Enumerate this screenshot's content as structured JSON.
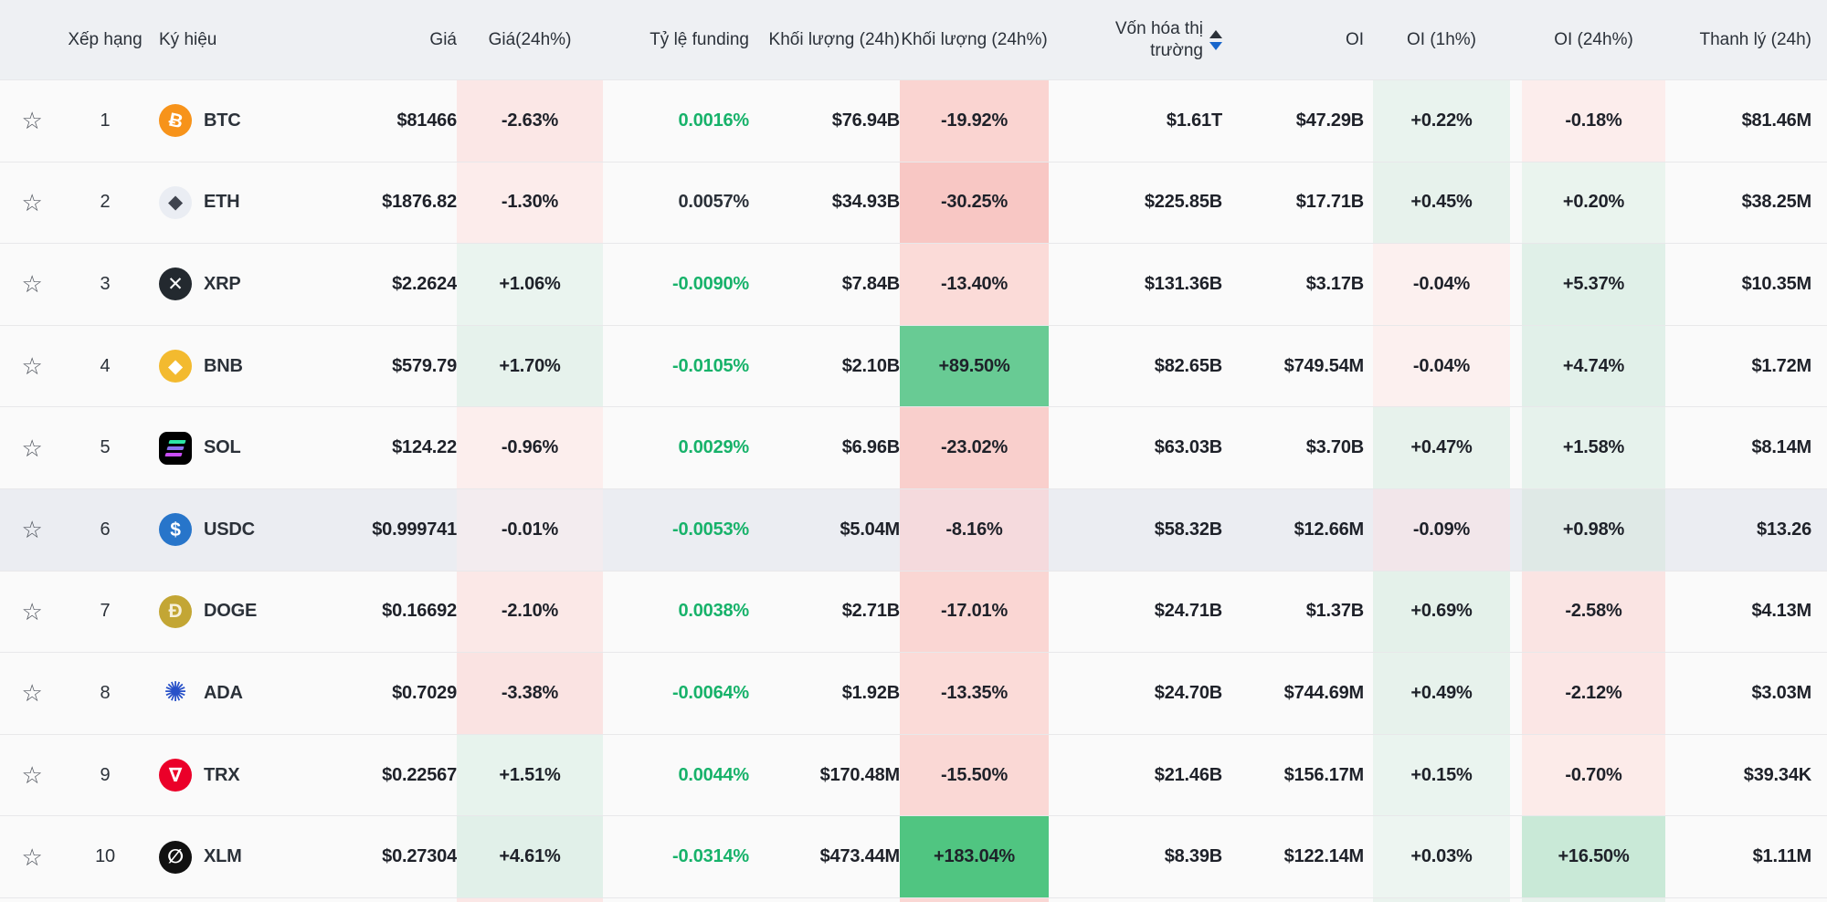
{
  "colors": {
    "header_bg": "#eef0f3",
    "row_bg": "#fafafa",
    "highlight_row_bg": "#ebedf2",
    "row_border": "#e8e8ea",
    "funding_green": "#17b26a",
    "text_dark": "#2b3139",
    "sort_active_blue": "#1866cb"
  },
  "table": {
    "sort": {
      "column": "Vốn hóa thị trường",
      "direction": "desc"
    },
    "columns": [
      {
        "label": "Xếp hạng"
      },
      {
        "label": "Ký hiệu"
      },
      {
        "label": "Giá"
      },
      {
        "label": "Giá(24h%)"
      },
      {
        "label": "Tỷ lệ funding"
      },
      {
        "label": "Khối lượng (24h)"
      },
      {
        "label": "Khối lượng (24h%)"
      },
      {
        "label": "Vốn hóa thị trường"
      },
      {
        "label": "OI"
      },
      {
        "label": "OI (1h%)"
      },
      {
        "label": "OI (24h%)"
      },
      {
        "label": "Thanh lý (24h)"
      }
    ],
    "rows": [
      {
        "rank": "1",
        "symbol": "BTC",
        "icon": {
          "name": "btc-coin-icon",
          "bg": "#f7931a",
          "fg": "#ffffff",
          "glyph": "Ƀ",
          "shape": "circle"
        },
        "price": "$81466",
        "price_chg": "-2.63%",
        "price_chg_bg": "#fbe7e6",
        "funding": "0.0016%",
        "funding_color": "#17b26a",
        "vol": "$76.94B",
        "vol_chg": "-19.92%",
        "vol_chg_bg": "#fad4d1",
        "mcap": "$1.61T",
        "oi": "$47.29B",
        "oi_1h": "+0.22%",
        "oi_1h_bg": "#e9f3ee",
        "oi_24h": "-0.18%",
        "oi_24h_bg": "#fcedec",
        "liq": "$81.46M",
        "highlighted": false
      },
      {
        "rank": "2",
        "symbol": "ETH",
        "icon": {
          "name": "eth-coin-icon",
          "bg": "#eaedf3",
          "fg": "#40444f",
          "glyph": "◆",
          "shape": "circle"
        },
        "price": "$1876.82",
        "price_chg": "-1.30%",
        "price_chg_bg": "#fceceb",
        "funding": "0.0057%",
        "funding_color": "#2b3139",
        "vol": "$34.93B",
        "vol_chg": "-30.25%",
        "vol_chg_bg": "#f8c7c4",
        "mcap": "$225.85B",
        "oi": "$17.71B",
        "oi_1h": "+0.45%",
        "oi_1h_bg": "#e7f2ec",
        "oi_24h": "+0.20%",
        "oi_24h_bg": "#eaf4ee",
        "liq": "$38.25M",
        "highlighted": false
      },
      {
        "rank": "3",
        "symbol": "XRP",
        "icon": {
          "name": "xrp-coin-icon",
          "bg": "#23292f",
          "fg": "#ffffff",
          "glyph": "✕",
          "shape": "circle"
        },
        "price": "$2.2624",
        "price_chg": "+1.06%",
        "price_chg_bg": "#eaf4ef",
        "funding": "-0.0090%",
        "funding_color": "#17b26a",
        "vol": "$7.84B",
        "vol_chg": "-13.40%",
        "vol_chg_bg": "#fbdbd8",
        "mcap": "$131.36B",
        "oi": "$3.17B",
        "oi_1h": "-0.04%",
        "oi_1h_bg": "#fcf0ef",
        "oi_24h": "+5.37%",
        "oi_24h_bg": "#e0f0e8",
        "liq": "$10.35M",
        "highlighted": false
      },
      {
        "rank": "4",
        "symbol": "BNB",
        "icon": {
          "name": "bnb-coin-icon",
          "bg": "#f3ba2f",
          "fg": "#ffffff",
          "glyph": "◆",
          "shape": "circle"
        },
        "price": "$579.79",
        "price_chg": "+1.70%",
        "price_chg_bg": "#e6f2ec",
        "funding": "-0.0105%",
        "funding_color": "#17b26a",
        "vol": "$2.10B",
        "vol_chg": "+89.50%",
        "vol_chg_bg": "#68cb94",
        "mcap": "$82.65B",
        "oi": "$749.54M",
        "oi_1h": "-0.04%",
        "oi_1h_bg": "#fcf0ef",
        "oi_24h": "+4.74%",
        "oi_24h_bg": "#e1f0e9",
        "liq": "$1.72M",
        "highlighted": false
      },
      {
        "rank": "5",
        "symbol": "SOL",
        "icon": {
          "name": "sol-coin-icon",
          "bg": "#000000",
          "shape": "rounded-square",
          "type": "bars",
          "bars": [
            "#2ce5a4",
            "#8a72ee",
            "#c94ef6"
          ]
        },
        "price": "$124.22",
        "price_chg": "-0.96%",
        "price_chg_bg": "#fceeed",
        "funding": "0.0029%",
        "funding_color": "#17b26a",
        "vol": "$6.96B",
        "vol_chg": "-23.02%",
        "vol_chg_bg": "#f9cfcc",
        "mcap": "$63.03B",
        "oi": "$3.70B",
        "oi_1h": "+0.47%",
        "oi_1h_bg": "#e7f2ec",
        "oi_24h": "+1.58%",
        "oi_24h_bg": "#e6f2ec",
        "liq": "$8.14M",
        "highlighted": false
      },
      {
        "rank": "6",
        "symbol": "USDC",
        "icon": {
          "name": "usdc-coin-icon",
          "bg": "#2775ca",
          "fg": "#ffffff",
          "glyph": "$",
          "shape": "circle"
        },
        "price": "$0.999741",
        "price_chg": "-0.01%",
        "price_chg_bg": "#f3ecef",
        "funding": "-0.0053%",
        "funding_color": "#17b26a",
        "vol": "$5.04M",
        "vol_chg": "-8.16%",
        "vol_chg_bg": "#f5dadd",
        "mcap": "$58.32B",
        "oi": "$12.66M",
        "oi_1h": "-0.09%",
        "oi_1h_bg": "#f2e6ea",
        "oi_24h": "+0.98%",
        "oi_24h_bg": "#dfe9e6",
        "liq": "$13.26",
        "highlighted": true
      },
      {
        "rank": "7",
        "symbol": "DOGE",
        "icon": {
          "name": "doge-coin-icon",
          "bg": "#c3a634",
          "fg": "#f6f0da",
          "glyph": "Ð",
          "shape": "circle"
        },
        "price": "$0.16692",
        "price_chg": "-2.10%",
        "price_chg_bg": "#fbe8e7",
        "funding": "0.0038%",
        "funding_color": "#17b26a",
        "vol": "$2.71B",
        "vol_chg": "-17.01%",
        "vol_chg_bg": "#fad6d3",
        "mcap": "$24.71B",
        "oi": "$1.37B",
        "oi_1h": "+0.69%",
        "oi_1h_bg": "#e4f1ea",
        "oi_24h": "-2.58%",
        "oi_24h_bg": "#fae4e3",
        "liq": "$4.13M",
        "highlighted": false
      },
      {
        "rank": "8",
        "symbol": "ADA",
        "icon": {
          "name": "ada-coin-icon",
          "bg": "transparent",
          "fg": "#2750c8",
          "glyph": "✺",
          "shape": "circle"
        },
        "price": "$0.7029",
        "price_chg": "-3.38%",
        "price_chg_bg": "#fae3e2",
        "funding": "-0.0064%",
        "funding_color": "#17b26a",
        "vol": "$1.92B",
        "vol_chg": "-13.35%",
        "vol_chg_bg": "#fbdbd8",
        "mcap": "$24.70B",
        "oi": "$744.69M",
        "oi_1h": "+0.49%",
        "oi_1h_bg": "#e7f2ec",
        "oi_24h": "-2.12%",
        "oi_24h_bg": "#fbe6e5",
        "liq": "$3.03M",
        "highlighted": false
      },
      {
        "rank": "9",
        "symbol": "TRX",
        "icon": {
          "name": "trx-coin-icon",
          "bg": "#eb0029",
          "fg": "#ffffff",
          "glyph": "∇",
          "shape": "circle"
        },
        "price": "$0.22567",
        "price_chg": "+1.51%",
        "price_chg_bg": "#e7f3ed",
        "funding": "0.0044%",
        "funding_color": "#17b26a",
        "vol": "$170.48M",
        "vol_chg": "-15.50%",
        "vol_chg_bg": "#fad8d5",
        "mcap": "$21.46B",
        "oi": "$156.17M",
        "oi_1h": "+0.15%",
        "oi_1h_bg": "#eaf4ef",
        "oi_24h": "-0.70%",
        "oi_24h_bg": "#fcebe9",
        "liq": "$39.34K",
        "highlighted": false
      },
      {
        "rank": "10",
        "symbol": "XLM",
        "icon": {
          "name": "xlm-coin-icon",
          "bg": "#111111",
          "fg": "#ffffff",
          "glyph": "∅",
          "shape": "circle"
        },
        "price": "$0.27304",
        "price_chg": "+4.61%",
        "price_chg_bg": "#e1f0e9",
        "funding": "-0.0314%",
        "funding_color": "#17b26a",
        "vol": "$473.44M",
        "vol_chg": "+183.04%",
        "vol_chg_bg": "#50c581",
        "mcap": "$8.39B",
        "oi": "$122.14M",
        "oi_1h": "+0.03%",
        "oi_1h_bg": "#edf5f1",
        "oi_24h": "+16.50%",
        "oi_24h_bg": "#c9e9d7",
        "liq": "$1.11M",
        "highlighted": false
      }
    ],
    "partial_row": {
      "price_chg_bg": "#fbe7e6",
      "vol_chg_bg": "#fad7d4",
      "oi_1h_bg": "#eaf3ee",
      "oi_24h_bg": "#e7f2ec"
    }
  }
}
